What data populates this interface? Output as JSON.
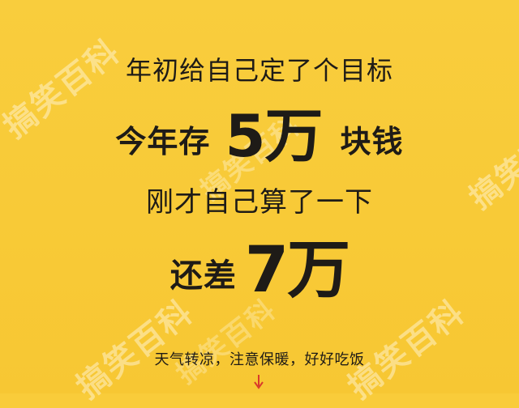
{
  "poster": {
    "line1": "年初给自己定了个目标",
    "line2": {
      "prefix": "今年存",
      "amount": "5万",
      "suffix": "块钱"
    },
    "line3": "刚才自己算了一下",
    "line4": {
      "prefix": "还差",
      "amount": "7万"
    },
    "footer": "天气转凉，注意保暖，好好吃饭"
  },
  "watermark": {
    "text": "搞笑百科"
  },
  "colors": {
    "background": "#F9CC3A",
    "text": "#1E1B17",
    "arrow": "#D93A2B"
  }
}
